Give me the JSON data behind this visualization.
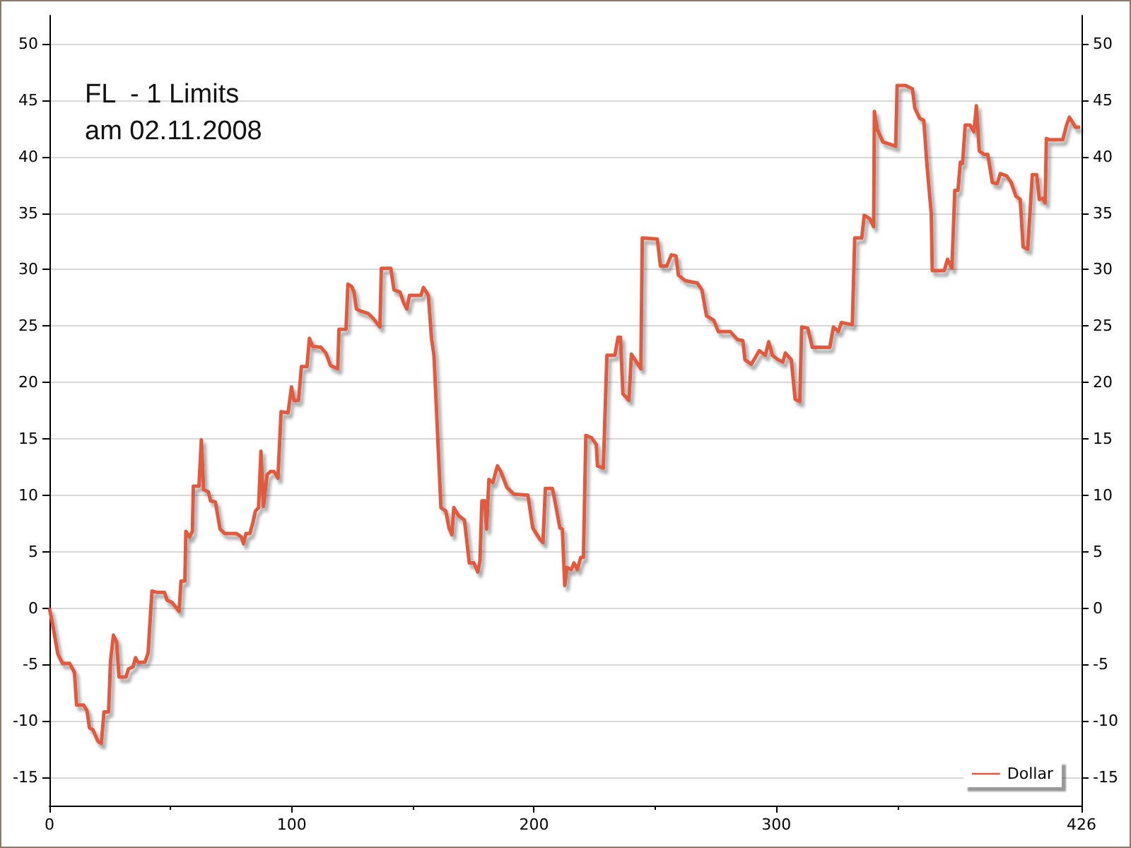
{
  "chart_data": {
    "type": "line",
    "title": "FL  - 1 Limits\nam 02.11.2008",
    "xlim": [
      0,
      426
    ],
    "xticks": [
      0,
      100,
      200,
      300,
      426
    ],
    "ylim": [
      -17.5,
      52.5
    ],
    "yticks": [
      -15,
      -10,
      -5,
      0,
      5,
      10,
      15,
      20,
      25,
      30,
      35,
      40,
      45,
      50
    ],
    "y2lim": [
      -17.5,
      52.5
    ],
    "y2ticks": [
      -15,
      -10,
      -5,
      0,
      5,
      10,
      15,
      20,
      25,
      30,
      35,
      40,
      45,
      50
    ],
    "grid": "y",
    "legend": "bottom right",
    "marker": "none",
    "line_style": "solid",
    "series": [
      {
        "name": "Dollar",
        "color": "#e05a40",
        "x": [
          0,
          1.6,
          3.5,
          5.4,
          8.3,
          10.3,
          11.2,
          14.1,
          15.5,
          16.5,
          18,
          20,
          21.4,
          22.5,
          24.4,
          25.2,
          26.4,
          27.7,
          28.7,
          31.6,
          32.6,
          34.5,
          35.5,
          36.5,
          39.4,
          40.7,
          42.3,
          44.2,
          47.5,
          48.5,
          50.6,
          53.5,
          54.3,
          55.9,
          56.3,
          57.8,
          59,
          59.4,
          61.7,
          62.7,
          63.6,
          65.6,
          66.5,
          68.5,
          70.4,
          72.4,
          77.2,
          79.2,
          80.1,
          81.1,
          82.7,
          84,
          85,
          86.3,
          87.3,
          88.3,
          89.8,
          91.2,
          92.7,
          94.3,
          95.6,
          98.5,
          99.9,
          100.9,
          102.8,
          104,
          106.3,
          107.3,
          108.6,
          112.1,
          114.1,
          116,
          119,
          119.5,
          122.4,
          123.2,
          124.7,
          125.7,
          126.7,
          128.6,
          131.5,
          133.5,
          136.4,
          137,
          140.9,
          142.2,
          144.7,
          146.1,
          147.5,
          148.6,
          153.3,
          154.4,
          156.4,
          157.7,
          158.7,
          161.6,
          163.6,
          164.9,
          166.1,
          166.9,
          168.8,
          171.3,
          173.3,
          175.2,
          176.8,
          177.7,
          178.5,
          179.7,
          180.4,
          181.4,
          183,
          184.9,
          186.3,
          188.8,
          191.7,
          197.5,
          199.5,
          202.4,
          203.7,
          204.7,
          207.6,
          208.8,
          210.7,
          211.7,
          212.7,
          213.6,
          215.4,
          216.5,
          217.9,
          219.3,
          220.4,
          221.4,
          223.7,
          225.7,
          226.2,
          228.6,
          230.1,
          233.4,
          234.7,
          235.7,
          236.7,
          239.2,
          240.2,
          244.1,
          244.7,
          250.9,
          252.2,
          254.8,
          256.7,
          258.6,
          259.6,
          262.5,
          267.4,
          269.3,
          271.2,
          274.2,
          276.1,
          281,
          283.9,
          286.2,
          287.1,
          289.7,
          293,
          295.5,
          296.9,
          298.4,
          300.8,
          302.7,
          303.8,
          306.2,
          307.8,
          309.7,
          310.5,
          313,
          314.9,
          322.1,
          323.6,
          325.6,
          326.9,
          331.4,
          332.4,
          335.3,
          336.3,
          338.6,
          340.2,
          340.5,
          341.7,
          344,
          347,
          349.3,
          349.9,
          353.4,
          356.2,
          357.2,
          359.2,
          360.9,
          362.2,
          364,
          364.4,
          369.3,
          370.7,
          372.5,
          373.7,
          375,
          376,
          376.9,
          378,
          380,
          381.6,
          382.6,
          383.8,
          385.8,
          387.3,
          389.2,
          391.2,
          392.5,
          395.1,
          397,
          398.9,
          400.7,
          401.9,
          403.8,
          405.7,
          407.5,
          408.6,
          410,
          411,
          411.5,
          412.7,
          418.3,
          419.7,
          421,
          423.5,
          425.5
        ],
        "values": [
          0,
          -1.8,
          -4.1,
          -4.9,
          -4.9,
          -5.7,
          -8.6,
          -8.6,
          -9.1,
          -10.6,
          -10.8,
          -11.8,
          -12,
          -9.2,
          -9.2,
          -4.7,
          -2.4,
          -3,
          -6.1,
          -6.1,
          -5.4,
          -5.2,
          -4.4,
          -4.8,
          -4.8,
          -4,
          1.5,
          1.4,
          1.4,
          0.7,
          0.5,
          -0.3,
          2.4,
          2.4,
          6.8,
          6.3,
          6.8,
          10.8,
          10.8,
          14.9,
          10.5,
          10.3,
          9.5,
          9.4,
          7,
          6.6,
          6.6,
          6.3,
          5.7,
          6.6,
          6.6,
          7.6,
          8.6,
          8.9,
          13.9,
          9,
          11.8,
          12.1,
          12.1,
          11.5,
          17.4,
          17.3,
          19.6,
          18.4,
          18.4,
          21.4,
          21.4,
          23.9,
          23.2,
          23.1,
          22.6,
          21.5,
          21.2,
          24.7,
          24.7,
          28.7,
          28.5,
          28,
          26.5,
          26.3,
          26.1,
          25.7,
          24.9,
          30.1,
          30.1,
          28.2,
          28,
          27.1,
          26.5,
          27.7,
          27.7,
          28.4,
          27.7,
          23.9,
          22.4,
          8.9,
          8.6,
          7.1,
          6.5,
          8.9,
          8.2,
          7.8,
          4,
          4,
          3.2,
          4.2,
          9.5,
          9.5,
          7,
          11.4,
          11.1,
          12.6,
          12.1,
          10.7,
          10.1,
          10,
          7.1,
          6.1,
          5.8,
          10.6,
          10.6,
          9.3,
          7.1,
          7,
          2,
          3.6,
          3.4,
          4,
          3.4,
          4.5,
          4.5,
          15.3,
          15.1,
          14.5,
          12.6,
          12.4,
          22.4,
          22.4,
          24,
          24,
          19,
          18.4,
          22.5,
          21.2,
          32.8,
          32.7,
          30.3,
          30.3,
          31.3,
          31.2,
          29.5,
          29,
          28.8,
          28.2,
          25.9,
          25.5,
          24.5,
          24.5,
          23.8,
          23.7,
          22,
          21.6,
          22.8,
          22.4,
          23.6,
          22.4,
          22,
          21.8,
          22.6,
          22,
          18.5,
          18.3,
          24.9,
          24.8,
          23.1,
          23.1,
          24.9,
          24.5,
          25.3,
          25.1,
          32.8,
          32.8,
          34.8,
          34.5,
          33.8,
          44,
          42.4,
          41.3,
          41.1,
          40.9,
          46.3,
          46.3,
          46,
          44.3,
          43.4,
          43.2,
          39.3,
          34.9,
          29.9,
          29.9,
          30.9,
          30.1,
          37,
          37,
          39.5,
          39.4,
          42.8,
          42.8,
          42.2,
          44.5,
          40.5,
          40.2,
          40.2,
          37.7,
          37.6,
          38.5,
          38.3,
          37.7,
          36.5,
          36.2,
          32,
          31.8,
          38.4,
          38.4,
          36.2,
          36.3,
          35.9,
          41.6,
          41.5,
          41.5,
          42.7,
          43.5,
          42.6,
          42.6
        ]
      }
    ]
  }
}
